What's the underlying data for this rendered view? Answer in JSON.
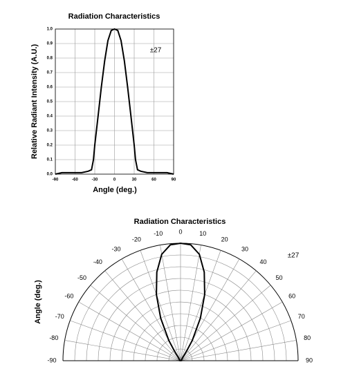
{
  "chart_data": [
    {
      "type": "line",
      "title": "Radiation Characteristics",
      "xlabel": "Angle (deg.)",
      "ylabel": "Relative Radiant Intensity (A.U.)",
      "annotation": "±27",
      "x": [
        -90,
        -80,
        -70,
        -60,
        -50,
        -40,
        -35,
        -32,
        -30,
        -25,
        -20,
        -15,
        -10,
        -5,
        0,
        5,
        10,
        15,
        20,
        25,
        30,
        32,
        35,
        40,
        50,
        60,
        70,
        80,
        90
      ],
      "values": [
        0.0,
        0.01,
        0.01,
        0.01,
        0.01,
        0.02,
        0.03,
        0.1,
        0.2,
        0.4,
        0.6,
        0.78,
        0.92,
        0.99,
        1.0,
        0.99,
        0.92,
        0.78,
        0.6,
        0.4,
        0.2,
        0.1,
        0.03,
        0.02,
        0.01,
        0.01,
        0.01,
        0.01,
        0.0
      ],
      "color": "#000000",
      "xlim": [
        -90,
        90
      ],
      "xticks": [
        -90,
        -60,
        -30,
        0,
        30,
        60,
        90
      ],
      "ylim": [
        0,
        1
      ],
      "yticks": [
        {
          "value": 0,
          "label": "0.0"
        },
        0.1,
        0.2,
        0.3,
        0.4,
        0.5,
        0.6,
        0.7,
        0.8,
        0.9,
        {
          "value": 1,
          "label": "1.0"
        }
      ],
      "grid": true
    },
    {
      "type": "polar",
      "title": "Radiation Characteristics",
      "ylabel": "Angle (deg.)",
      "annotation": "±27",
      "theta": [
        -90,
        -80,
        -70,
        -60,
        -50,
        -40,
        -35,
        -32,
        -30,
        -25,
        -20,
        -15,
        -10,
        -5,
        0,
        5,
        10,
        15,
        20,
        25,
        30,
        32,
        35,
        40,
        50,
        60,
        70,
        80,
        90
      ],
      "values": [
        0.0,
        0.01,
        0.01,
        0.01,
        0.01,
        0.02,
        0.03,
        0.1,
        0.2,
        0.4,
        0.6,
        0.78,
        0.92,
        0.99,
        1.0,
        0.99,
        0.92,
        0.78,
        0.6,
        0.4,
        0.2,
        0.1,
        0.03,
        0.02,
        0.01,
        0.01,
        0.01,
        0.01,
        0.0
      ],
      "color": "#000000",
      "thetalim": [
        -90,
        90
      ],
      "thetaticks": [
        -90,
        -80,
        -70,
        -60,
        -50,
        -40,
        -30,
        -20,
        -10,
        0,
        10,
        20,
        30,
        40,
        50,
        60,
        70,
        80,
        90
      ],
      "rlim": [
        0,
        1
      ],
      "rticks": [
        0.1,
        0.2,
        0.3,
        0.4,
        0.5,
        0.6,
        0.7,
        0.8,
        0.9,
        1
      ],
      "grid": true
    }
  ]
}
